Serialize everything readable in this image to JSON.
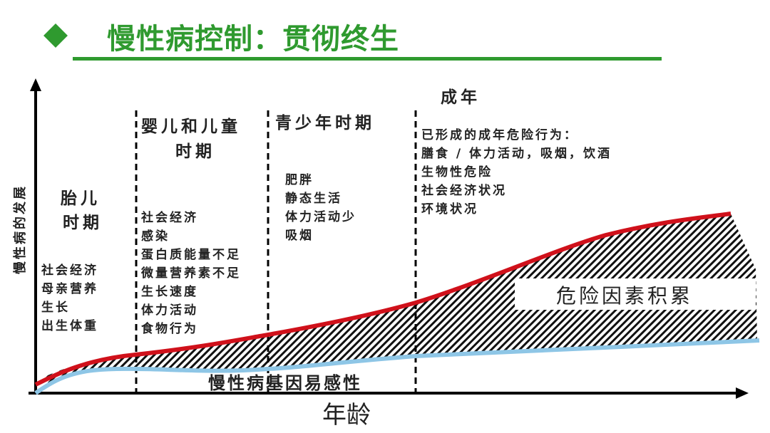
{
  "header": {
    "title": "慢性病控制：贯彻终生",
    "bullet_icon": "diamond-icon",
    "accent_color": "#2f9a2f"
  },
  "diagram": {
    "y_axis_label": "慢性病的发展",
    "x_axis_label": "年龄",
    "stages": [
      {
        "title_lines": [
          "胎儿",
          "时期"
        ],
        "factors": [
          "社会经济",
          "母亲营养",
          "生长",
          "出生体重"
        ]
      },
      {
        "title_lines": [
          "婴儿和儿童",
          "时期"
        ],
        "factors": [
          "社会经济",
          "感染",
          "蛋白质能量不足",
          "微量营养素不足",
          "生长速度",
          "体力活动",
          "食物行为"
        ]
      },
      {
        "title_lines": [
          "青少年时期"
        ],
        "factors": [
          "肥胖",
          "静态生活",
          "体力活动少",
          "吸烟"
        ]
      },
      {
        "title_lines": [
          "成年"
        ],
        "factors": [
          "已形成的成年危险行为：",
          "膳食 / 体力活动，吸烟，饮酒",
          "生物性危险",
          "社会经济状况",
          "环境状况"
        ]
      }
    ],
    "area_label": "危险因素积累",
    "baseline_label": "慢性病基因易感性",
    "colors": {
      "risk_curve": "#d0111b",
      "genetic_curve": "#8ec6e6"
    }
  }
}
